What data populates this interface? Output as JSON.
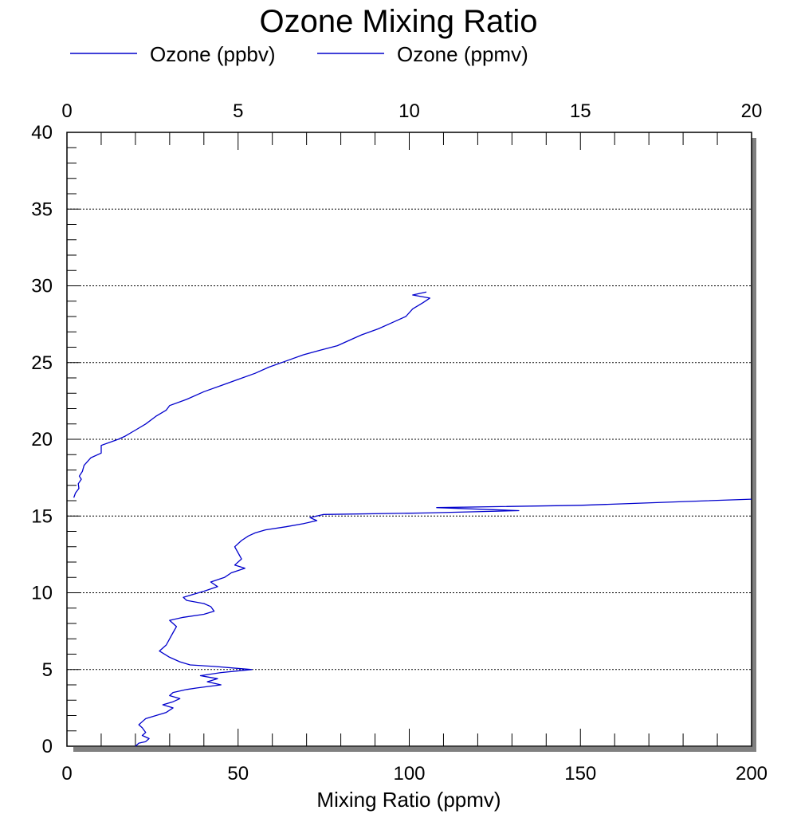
{
  "chart_data": {
    "type": "line",
    "title": "Ozone Mixing Ratio",
    "xlabel": "Mixing Ratio (ppmv)",
    "ylabel": "",
    "xlim_bottom": [
      0,
      200
    ],
    "xlim_top": [
      0,
      20
    ],
    "ylim": [
      0,
      40
    ],
    "x_ticks_bottom": [
      "0",
      "50",
      "100",
      "150",
      "200"
    ],
    "x_ticks_top": [
      "0",
      "5",
      "10",
      "15",
      "20"
    ],
    "y_ticks": [
      "0",
      "5",
      "10",
      "15",
      "20",
      "25",
      "30",
      "35",
      "40"
    ],
    "gridlines_y": [
      5,
      10,
      15,
      20,
      25,
      30,
      35
    ],
    "grid": "horizontal dotted",
    "legend_position": "top",
    "line_color": "#0000cc",
    "series": [
      {
        "name": "Ozone (ppbv)",
        "axis": "bottom",
        "points": [
          [
            20,
            0
          ],
          [
            21,
            0.2
          ],
          [
            23,
            0.3
          ],
          [
            24,
            0.5
          ],
          [
            22,
            0.7
          ],
          [
            23,
            0.9
          ],
          [
            22,
            1.2
          ],
          [
            21,
            1.4
          ],
          [
            22,
            1.6
          ],
          [
            23,
            1.8
          ],
          [
            26,
            2.0
          ],
          [
            29,
            2.2
          ],
          [
            31,
            2.5
          ],
          [
            28,
            2.7
          ],
          [
            31,
            2.9
          ],
          [
            33,
            3.1
          ],
          [
            30,
            3.3
          ],
          [
            31,
            3.5
          ],
          [
            35,
            3.7
          ],
          [
            38,
            3.8
          ],
          [
            45,
            4.0
          ],
          [
            41,
            4.2
          ],
          [
            44,
            4.4
          ],
          [
            39,
            4.6
          ],
          [
            45,
            4.8
          ],
          [
            54,
            5.0
          ],
          [
            43,
            5.2
          ],
          [
            36,
            5.3
          ],
          [
            33,
            5.5
          ],
          [
            30,
            5.8
          ],
          [
            27,
            6.2
          ],
          [
            29,
            6.6
          ],
          [
            30,
            7.0
          ],
          [
            31,
            7.4
          ],
          [
            32,
            7.8
          ],
          [
            30,
            8.2
          ],
          [
            34,
            8.4
          ],
          [
            40,
            8.6
          ],
          [
            43,
            8.8
          ],
          [
            42,
            9.1
          ],
          [
            40,
            9.3
          ],
          [
            35,
            9.5
          ],
          [
            34,
            9.7
          ],
          [
            37,
            9.9
          ],
          [
            40,
            10.1
          ],
          [
            44,
            10.4
          ],
          [
            42,
            10.7
          ],
          [
            46,
            11.0
          ],
          [
            48,
            11.3
          ],
          [
            52,
            11.6
          ],
          [
            49,
            11.8
          ],
          [
            51,
            12.2
          ],
          [
            50,
            12.6
          ],
          [
            49,
            13.0
          ],
          [
            51,
            13.4
          ],
          [
            53,
            13.7
          ],
          [
            55,
            13.9
          ],
          [
            58,
            14.1
          ],
          [
            64,
            14.3
          ],
          [
            69,
            14.5
          ],
          [
            73,
            14.7
          ],
          [
            71,
            14.9
          ],
          [
            75,
            15.1
          ],
          [
            105,
            15.2
          ],
          [
            132,
            15.35
          ],
          [
            108,
            15.55
          ],
          [
            150,
            15.7
          ],
          [
            200,
            16.1
          ]
        ]
      },
      {
        "name": "Ozone (ppmv)",
        "axis": "top",
        "points": [
          [
            0.2,
            16.2
          ],
          [
            0.25,
            16.5
          ],
          [
            0.35,
            16.8
          ],
          [
            0.33,
            17.1
          ],
          [
            0.42,
            17.4
          ],
          [
            0.36,
            17.6
          ],
          [
            0.45,
            17.9
          ],
          [
            0.5,
            18.3
          ],
          [
            0.7,
            18.8
          ],
          [
            1.0,
            19.1
          ],
          [
            1.0,
            19.6
          ],
          [
            1.5,
            20.0
          ],
          [
            1.7,
            20.2
          ],
          [
            2.0,
            20.6
          ],
          [
            2.3,
            21.0
          ],
          [
            2.6,
            21.5
          ],
          [
            2.9,
            21.9
          ],
          [
            3.0,
            22.2
          ],
          [
            3.5,
            22.6
          ],
          [
            4.0,
            23.1
          ],
          [
            4.5,
            23.5
          ],
          [
            5.0,
            23.9
          ],
          [
            5.5,
            24.3
          ],
          [
            5.9,
            24.7
          ],
          [
            6.4,
            25.1
          ],
          [
            6.9,
            25.5
          ],
          [
            7.4,
            25.8
          ],
          [
            7.9,
            26.1
          ],
          [
            8.3,
            26.5
          ],
          [
            8.6,
            26.8
          ],
          [
            9.1,
            27.2
          ],
          [
            9.5,
            27.6
          ],
          [
            9.9,
            28.0
          ],
          [
            10.1,
            28.5
          ],
          [
            10.4,
            28.9
          ],
          [
            10.6,
            29.2
          ],
          [
            10.1,
            29.4
          ],
          [
            10.5,
            29.6
          ]
        ]
      }
    ]
  }
}
